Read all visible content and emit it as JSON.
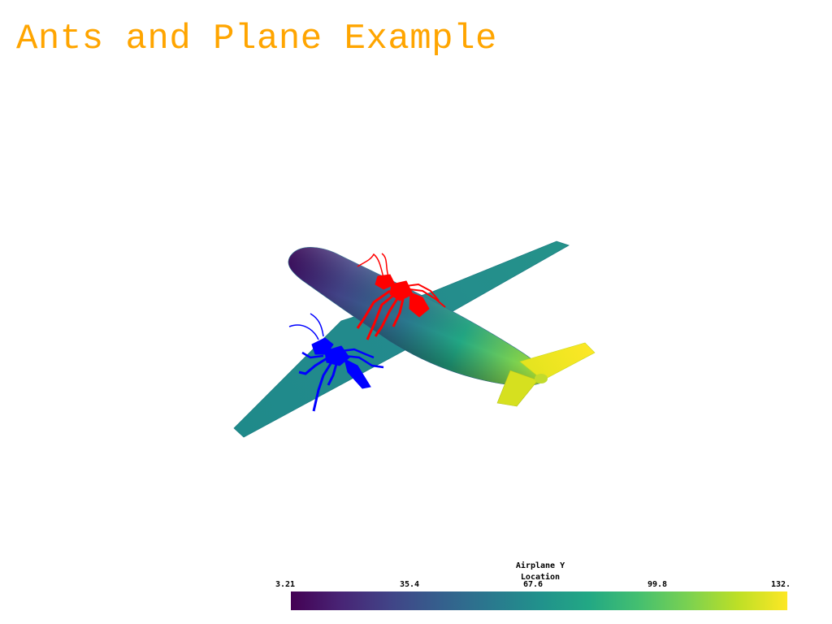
{
  "title": "Ants and Plane Example",
  "colors": {
    "title": "#FFA500",
    "ant_red": "#FF0000",
    "ant_blue": "#0000FF",
    "background": "#FFFFFF"
  },
  "scene": {
    "objects": [
      {
        "name": "airplane",
        "coloring": "scalar field"
      },
      {
        "name": "ant",
        "color": "red"
      },
      {
        "name": "ant",
        "color": "blue"
      }
    ]
  },
  "scalar_bar": {
    "title": "Airplane Y\nLocation",
    "colormap": "viridis",
    "ticks": [
      "3.21",
      "35.4",
      "67.6",
      "99.8",
      "132."
    ],
    "range": [
      3.21,
      132.0
    ]
  }
}
